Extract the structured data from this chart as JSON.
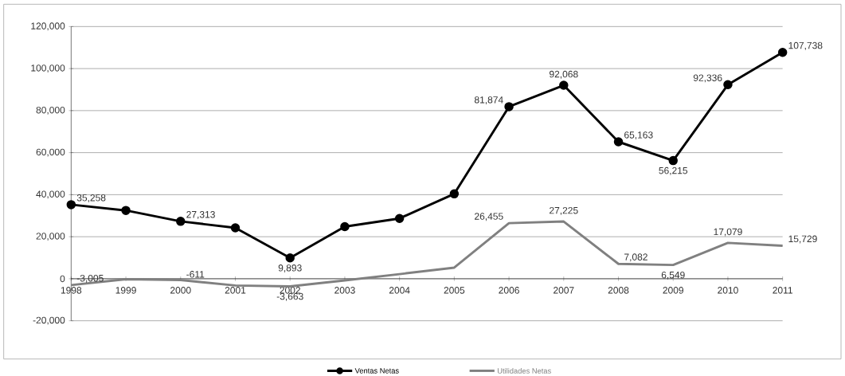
{
  "chart_data": {
    "type": "line",
    "categories": [
      "1998",
      "1999",
      "2000",
      "2001",
      "2002",
      "2003",
      "2004",
      "2005",
      "2006",
      "2007",
      "2008",
      "2009",
      "2010",
      "2011"
    ],
    "series": [
      {
        "name": "Ventas Netas",
        "color": "#000000",
        "marker": "circle",
        "values": [
          35258,
          32500,
          27313,
          24200,
          9893,
          24800,
          28700,
          40400,
          81874,
          92068,
          65163,
          56215,
          92336,
          107738
        ],
        "value_labels": [
          "35,258",
          null,
          "27,313",
          null,
          "9,893",
          null,
          null,
          null,
          "81,874",
          "92,068",
          "65,163",
          "56,215",
          "92,336",
          "107,738"
        ]
      },
      {
        "name": "Utilidades Netas",
        "color": "#808080",
        "marker": "none",
        "values": [
          -3005,
          -200,
          -611,
          -3200,
          -3663,
          -800,
          2200,
          5300,
          26455,
          27225,
          7082,
          6549,
          17079,
          15729
        ],
        "value_labels": [
          "-3,005",
          null,
          "-611",
          null,
          "-3,663",
          null,
          null,
          null,
          "26,455",
          "27,225",
          "7,082",
          "6,549",
          "17,079",
          "15,729"
        ]
      }
    ],
    "ylim": [
      -20000,
      120000
    ],
    "yticks": [
      {
        "value": -20000,
        "label": "-20,000"
      },
      {
        "value": 0,
        "label": "0"
      },
      {
        "value": 20000,
        "label": "20,000"
      },
      {
        "value": 40000,
        "label": "40,000"
      },
      {
        "value": 60000,
        "label": "60,000"
      },
      {
        "value": 80000,
        "label": "80,000"
      },
      {
        "value": 100000,
        "label": "100,000"
      },
      {
        "value": 120000,
        "label": "120,000"
      }
    ],
    "grid": "y",
    "legend": "bottom",
    "line_style": "solid"
  }
}
